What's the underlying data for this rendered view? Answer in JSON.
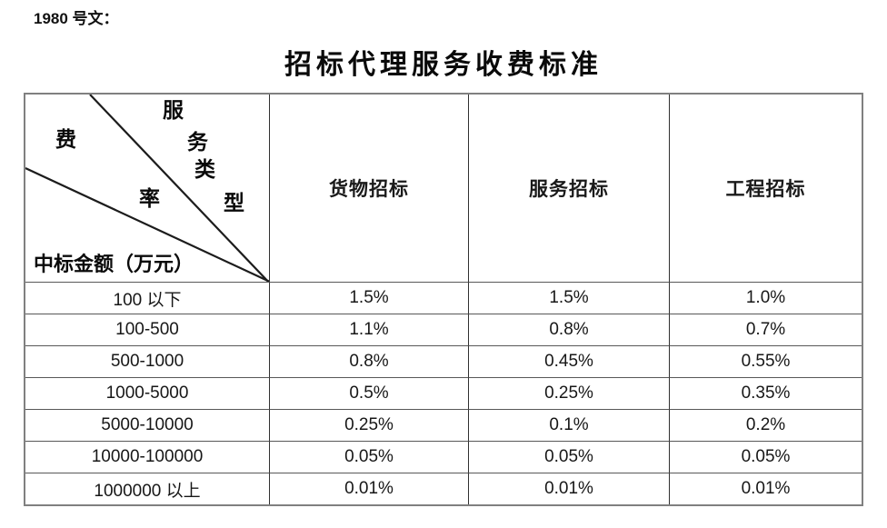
{
  "page": {
    "doc_label": "1980 号文：",
    "title": "招标代理服务收费标准"
  },
  "table": {
    "corner": {
      "fee_axis_chars": [
        "费",
        "率"
      ],
      "type_axis_chars": [
        "服",
        "务",
        "类",
        "型"
      ],
      "row_axis_label": "中标金额（万元）"
    },
    "columns": [
      "货物招标",
      "服务招标",
      "工程招标"
    ],
    "rows": [
      {
        "label": "100 以下",
        "values": [
          "1.5%",
          "1.5%",
          "1.0%"
        ]
      },
      {
        "label": "100-500",
        "values": [
          "1.1%",
          "0.8%",
          "0.7%"
        ]
      },
      {
        "label": "500-1000",
        "values": [
          "0.8%",
          "0.45%",
          "0.55%"
        ]
      },
      {
        "label": "1000-5000",
        "values": [
          "0.5%",
          "0.25%",
          "0.35%"
        ]
      },
      {
        "label": "5000-10000",
        "values": [
          "0.25%",
          "0.1%",
          "0.2%"
        ]
      },
      {
        "label": "10000-100000",
        "values": [
          "0.05%",
          "0.05%",
          "0.05%"
        ]
      },
      {
        "label": "1000000 以上",
        "values": [
          "0.01%",
          "0.01%",
          "0.01%"
        ]
      }
    ]
  },
  "colors": {
    "outer_border": "#808080",
    "inner_vertical_border": "#303030",
    "inner_horizontal_border": "#585858",
    "text": "#1a1a1a",
    "background": "#ffffff"
  }
}
